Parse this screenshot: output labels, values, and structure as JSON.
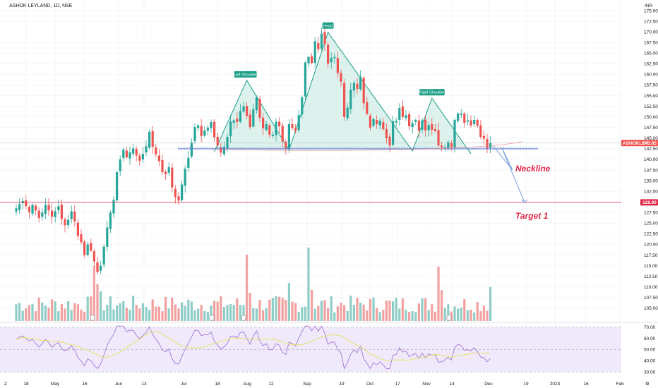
{
  "header": {
    "title": "ASHOK LEYLAND, 1D, NSE",
    "currency": "INR"
  },
  "colors": {
    "up": "#26a69a",
    "down": "#ef5350",
    "vol_up": "#8fcdc7",
    "vol_down": "#f2a1a0",
    "pattern_fill": "#d7f0ea",
    "pattern_line": "#1a9f87",
    "target_line": "#e0294a",
    "neckline": "#5b7bd1",
    "rsi_line": "#9b6bd1",
    "rsi_ma": "#e7e15a",
    "rsi_band": "#efe9fb",
    "grid": "#eef0f3",
    "text": "#131722",
    "annotation": "#e0294a"
  },
  "price_tags": {
    "current_symbol": "ASHOKLEY",
    "current_value": "143.85",
    "target_value": "129.90"
  },
  "annotations": {
    "neckline": "Neckline",
    "target": "Target 1"
  },
  "pattern_labels": {
    "left_shoulder": "Left Shoulder",
    "head": "Head",
    "right_shoulder": "Right Shoulder"
  },
  "chart_data": {
    "type": "candlestick",
    "title": "ASHOK LEYLAND, 1D, NSE",
    "price_axis": {
      "unit": "INR",
      "range": [
        102,
        177.5
      ],
      "ticks": [
        "175.00",
        "172.50",
        "170.00",
        "167.50",
        "165.00",
        "162.50",
        "160.00",
        "157.50",
        "155.00",
        "152.50",
        "150.00",
        "147.50",
        "145.00",
        "142.50",
        "140.00",
        "137.50",
        "135.00",
        "132.50",
        "130.00",
        "127.50",
        "125.00",
        "122.50",
        "120.00",
        "117.50",
        "115.00",
        "112.50",
        "110.00",
        "107.50",
        "105.00"
      ]
    },
    "time_axis": {
      "labels": [
        "18",
        "May",
        "16",
        "Jun",
        "13",
        "Jul",
        "18",
        "Aug",
        "12",
        "Sep",
        "19",
        "Oct",
        "17",
        "Nov",
        "14",
        "Dec",
        "19",
        "2023",
        "16",
        "Feb"
      ]
    },
    "rsi_axis": {
      "range": [
        27,
        73
      ],
      "ticks": [
        "70.00",
        "60.00",
        "50.00",
        "40.00",
        "30.00"
      ],
      "band": [
        30,
        70
      ]
    },
    "pattern": "head_and_shoulders",
    "head_shoulders_points": [
      {
        "date": "Jul 18",
        "price": 141.8
      },
      {
        "date": "Aug 1",
        "price": 158.6,
        "label": "Left Shoulder"
      },
      {
        "date": "Aug 24",
        "price": 142.2
      },
      {
        "date": "Sep 12",
        "price": 169.9,
        "label": "Head"
      },
      {
        "date": "Oct 24",
        "price": 142.0
      },
      {
        "date": "Nov 2",
        "price": 154.4,
        "label": "Right Shoulder"
      },
      {
        "date": "Nov 28",
        "price": 141.3
      }
    ],
    "neckline_price": 142.5,
    "target_price": 129.9,
    "last_price": 143.85,
    "closes": [
      128.5,
      129.5,
      130.2,
      129.0,
      127.6,
      129.3,
      128.0,
      126.2,
      127.5,
      129.3,
      128.0,
      126.5,
      127.8,
      129.0,
      126.0,
      124.5,
      125.8,
      127.8,
      125.5,
      122.0,
      120.5,
      117.5,
      120.0,
      118.5,
      116.0,
      113.5,
      115.0,
      119.5,
      124.0,
      127.5,
      130.5,
      137.0,
      140.0,
      142.3,
      140.5,
      141.7,
      142.6,
      140.9,
      139.7,
      141.3,
      143.1,
      146.5,
      143.0,
      141.2,
      139.6,
      137.0,
      136.5,
      138.2,
      133.4,
      131.1,
      130.3,
      134.1,
      137.8,
      140.4,
      144.0,
      147.6,
      148.0,
      145.5,
      146.8,
      147.5,
      148.8,
      145.2,
      143.3,
      141.6,
      143.0,
      145.3,
      148.9,
      149.2,
      148.8,
      151.4,
      152.5,
      150.2,
      147.6,
      151.8,
      154.6,
      149.8,
      147.3,
      148.3,
      145.8,
      145.8,
      148.9,
      147.8,
      144.2,
      142.6,
      148.3,
      147.4,
      146.7,
      150.4,
      154.6,
      162.8,
      164.1,
      162.7,
      167.8,
      165.9,
      169.6,
      167.2,
      162.5,
      163.9,
      164.1,
      160.3,
      158.3,
      150.0,
      152.2,
      156.4,
      158.0,
      156.6,
      159.5,
      153.2,
      150.7,
      147.5,
      149.5,
      148.3,
      149.1,
      147.1,
      145.0,
      143.3,
      149.0,
      149.1,
      152.1,
      150.0,
      150.4,
      147.8,
      148.5,
      149.3,
      146.8,
      149.2,
      146.8,
      148.1,
      147.0,
      146.7,
      143.3,
      142.8,
      142.8,
      144.1,
      143.0,
      149.3,
      150.8,
      150.8,
      148.6,
      149.2,
      148.0,
      149.3,
      147.9,
      145.3,
      144.9,
      142.6,
      143.85
    ]
  }
}
